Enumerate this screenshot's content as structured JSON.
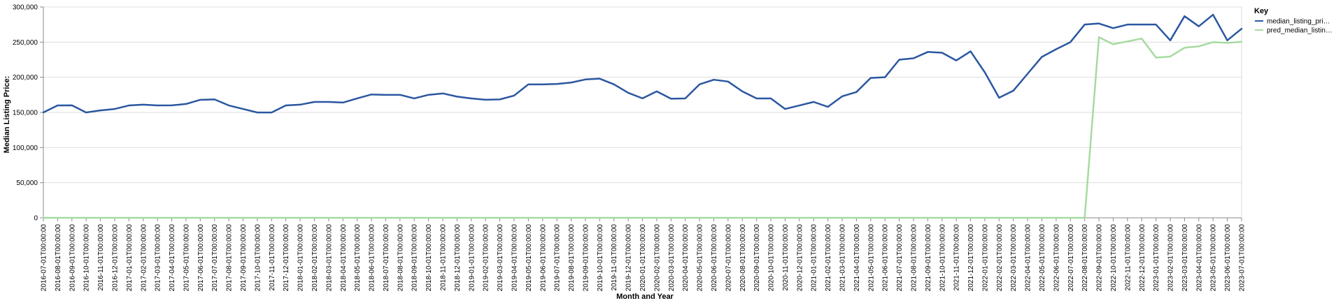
{
  "chart_data": {
    "type": "line",
    "xlabel": "Month and Year",
    "ylabel": "Median Listing Price:",
    "ylim": [
      0,
      300000
    ],
    "yticks": [
      "0",
      "50,000",
      "100,000",
      "150,000",
      "200,000",
      "250,000",
      "300,000"
    ],
    "grid": true,
    "legend": {
      "title": "Key",
      "position": "top-right",
      "entries": [
        "median_listing_pri…",
        "pred_median_listin…"
      ]
    },
    "x": [
      "2016-07-01T00:00:00",
      "2016-08-01T00:00:00",
      "2016-09-01T00:00:00",
      "2016-10-01T00:00:00",
      "2016-11-01T00:00:00",
      "2016-12-01T00:00:00",
      "2017-01-01T00:00:00",
      "2017-02-01T00:00:00",
      "2017-03-01T00:00:00",
      "2017-04-01T00:00:00",
      "2017-05-01T00:00:00",
      "2017-06-01T00:00:00",
      "2017-07-01T00:00:00",
      "2017-08-01T00:00:00",
      "2017-09-01T00:00:00",
      "2017-10-01T00:00:00",
      "2017-11-01T00:00:00",
      "2017-12-01T00:00:00",
      "2018-01-01T00:00:00",
      "2018-02-01T00:00:00",
      "2018-03-01T00:00:00",
      "2018-04-01T00:00:00",
      "2018-05-01T00:00:00",
      "2018-06-01T00:00:00",
      "2018-07-01T00:00:00",
      "2018-08-01T00:00:00",
      "2018-09-01T00:00:00",
      "2018-10-01T00:00:00",
      "2018-11-01T00:00:00",
      "2018-12-01T00:00:00",
      "2019-01-01T00:00:00",
      "2019-02-01T00:00:00",
      "2019-03-01T00:00:00",
      "2019-04-01T00:00:00",
      "2019-05-01T00:00:00",
      "2019-06-01T00:00:00",
      "2019-07-01T00:00:00",
      "2019-08-01T00:00:00",
      "2019-09-01T00:00:00",
      "2019-10-01T00:00:00",
      "2019-11-01T00:00:00",
      "2019-12-01T00:00:00",
      "2020-01-01T00:00:00",
      "2020-02-01T00:00:00",
      "2020-03-01T00:00:00",
      "2020-04-01T00:00:00",
      "2020-05-01T00:00:00",
      "2020-06-01T00:00:00",
      "2020-07-01T00:00:00",
      "2020-08-01T00:00:00",
      "2020-09-01T00:00:00",
      "2020-10-01T00:00:00",
      "2020-11-01T00:00:00",
      "2020-12-01T00:00:00",
      "2021-01-01T00:00:00",
      "2021-02-01T00:00:00",
      "2021-03-01T00:00:00",
      "2021-04-01T00:00:00",
      "2021-05-01T00:00:00",
      "2021-06-01T00:00:00",
      "2021-07-01T00:00:00",
      "2021-08-01T00:00:00",
      "2021-09-01T00:00:00",
      "2021-10-01T00:00:00",
      "2021-11-01T00:00:00",
      "2021-12-01T00:00:00",
      "2022-01-01T00:00:00",
      "2022-02-01T00:00:00",
      "2022-03-01T00:00:00",
      "2022-04-01T00:00:00",
      "2022-05-01T00:00:00",
      "2022-06-01T00:00:00",
      "2022-07-01T00:00:00",
      "2022-08-01T00:00:00",
      "2022-09-01T00:00:00",
      "2022-10-01T00:00:00",
      "2022-11-01T00:00:00",
      "2022-12-01T00:00:00",
      "2023-01-01T00:00:00",
      "2023-02-01T00:00:00",
      "2023-03-01T00:00:00",
      "2023-04-01T00:00:00",
      "2023-05-01T00:00:00",
      "2023-06-01T00:00:00",
      "2023-07-01T00:00:00"
    ],
    "series": [
      {
        "name": "median_listing_pri…",
        "color": "#2b57a0",
        "values": [
          150000,
          159900,
          160000,
          149900,
          152900,
          154900,
          159900,
          161000,
          159900,
          160000,
          162000,
          167900,
          168500,
          159900,
          154900,
          149900,
          149900,
          159900,
          161000,
          164900,
          164900,
          164000,
          169900,
          175500,
          175000,
          175000,
          169900,
          175000,
          177000,
          172500,
          169900,
          168000,
          168500,
          173900,
          189900,
          189900,
          190500,
          192500,
          196900,
          198000,
          189900,
          177900,
          170000,
          179900,
          169500,
          169900,
          189900,
          196500,
          193900,
          179900,
          169900,
          169900,
          154900,
          159900,
          164900,
          157900,
          172900,
          179000,
          199000,
          200000,
          225000,
          227000,
          236000,
          234900,
          223900,
          236900,
          207000,
          170900,
          180900,
          205000,
          229000,
          239900,
          250000,
          275000,
          276500,
          269900,
          275000,
          275000,
          275000,
          252500,
          286900,
          272500,
          289000,
          252500,
          269000
        ]
      },
      {
        "name": "pred_median_listin…",
        "color": "#a6dba0",
        "values": [
          0,
          0,
          0,
          0,
          0,
          0,
          0,
          0,
          0,
          0,
          0,
          0,
          0,
          0,
          0,
          0,
          0,
          0,
          0,
          0,
          0,
          0,
          0,
          0,
          0,
          0,
          0,
          0,
          0,
          0,
          0,
          0,
          0,
          0,
          0,
          0,
          0,
          0,
          0,
          0,
          0,
          0,
          0,
          0,
          0,
          0,
          0,
          0,
          0,
          0,
          0,
          0,
          0,
          0,
          0,
          0,
          0,
          0,
          0,
          0,
          0,
          0,
          0,
          0,
          0,
          0,
          0,
          0,
          0,
          0,
          0,
          0,
          0,
          0,
          257000,
          247000,
          251000,
          255000,
          228000,
          229500,
          242000,
          244000,
          250000,
          249000,
          250500
        ]
      }
    ]
  }
}
